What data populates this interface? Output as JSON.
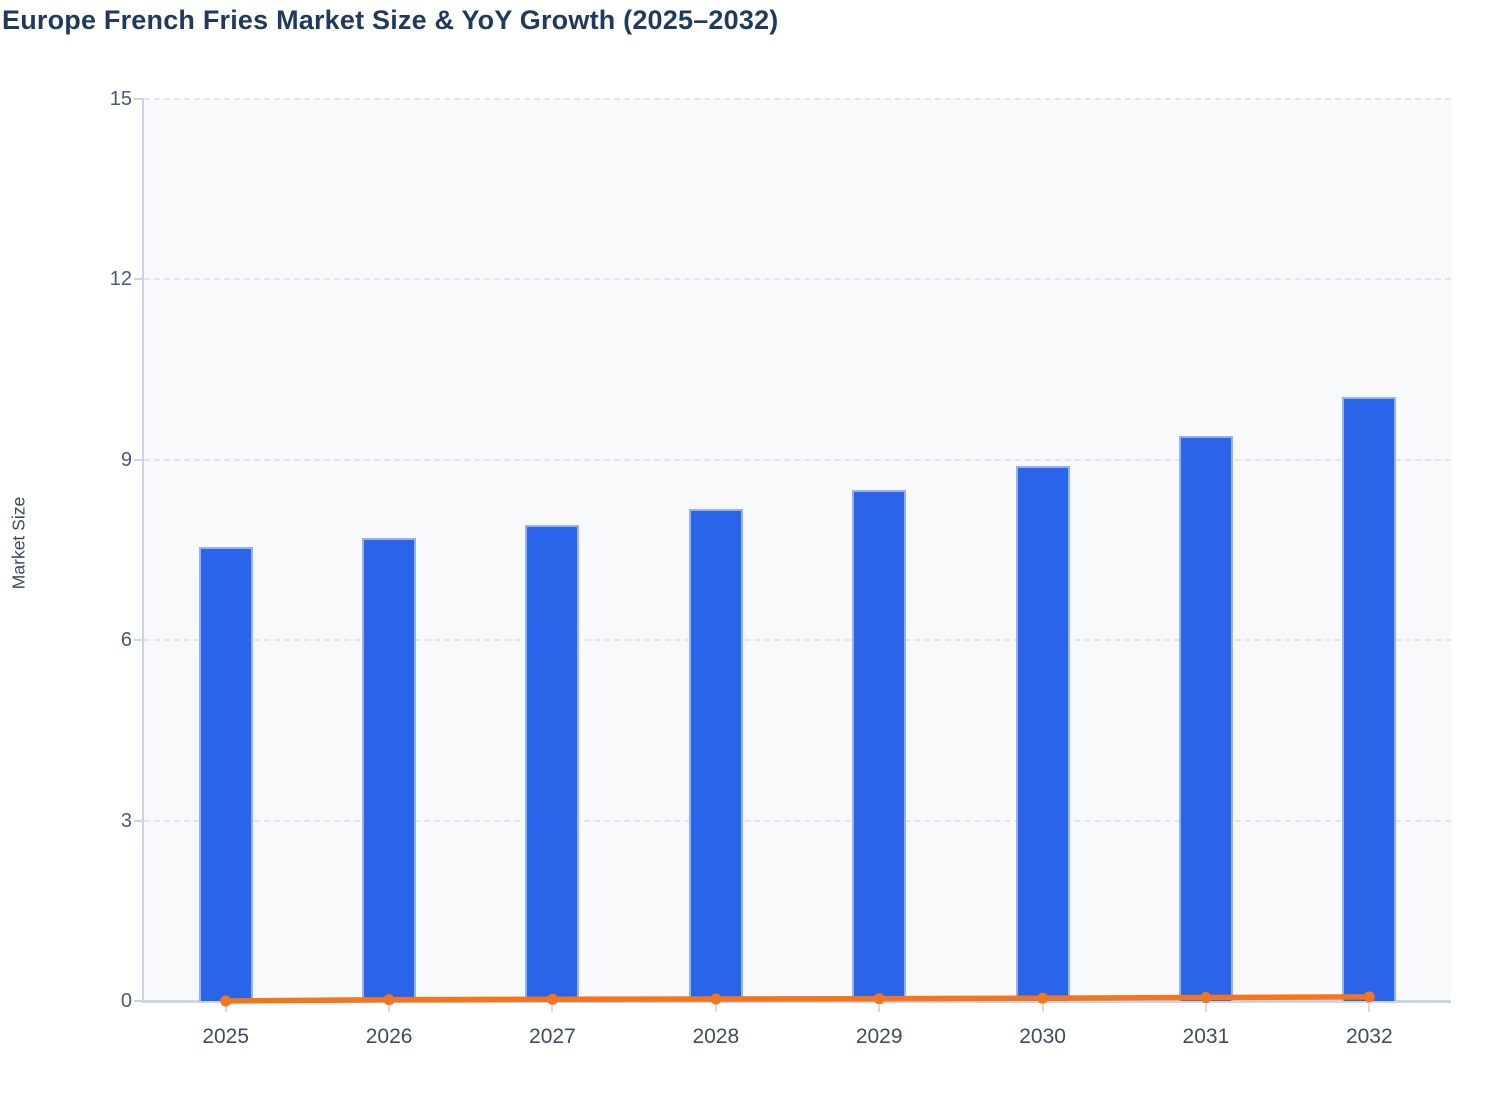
{
  "title": "Europe French Fries Market Size & YoY Growth (2025–2032)",
  "y_axis": {
    "name": "Market Size",
    "tick_labels": [
      "0",
      "3",
      "6",
      "9",
      "12",
      "15"
    ],
    "min": 0,
    "max": 15
  },
  "x_axis": {
    "tick_labels": [
      "2025",
      "2026",
      "2027",
      "2028",
      "2029",
      "2030",
      "2031",
      "2032"
    ]
  },
  "colors": {
    "bar_fill": "#2A64E8",
    "bar_edge": "#B9CBF3",
    "line": "#F4751C",
    "marker": "#F4751C",
    "grid": "#E3E5EA",
    "axis": "#CBD4EA",
    "plot_background": "#F8F9FB",
    "title_text": "#1F3A5E",
    "tick_text": "#4D5A6C"
  },
  "chart_data": {
    "type": "bar",
    "title": "Europe French Fries Market Size & YoY Growth (2025–2032)",
    "categories": [
      "2025",
      "2026",
      "2027",
      "2028",
      "2029",
      "2030",
      "2031",
      "2032"
    ],
    "series": [
      {
        "name": "Market Size",
        "type": "bar",
        "color": "#2A64E8",
        "values": [
          7.55,
          7.7,
          7.92,
          8.18,
          8.5,
          8.9,
          9.4,
          10.05
        ]
      },
      {
        "name": "YoY Growth",
        "type": "line",
        "color": "#F4751C",
        "values": [
          0,
          0.022,
          0.028,
          0.033,
          0.039,
          0.047,
          0.059,
          0.068
        ]
      }
    ],
    "xlabel": "",
    "ylabel": "Market Size",
    "ylim": [
      0,
      15
    ],
    "y_ticks": [
      0,
      3,
      6,
      9,
      12,
      15
    ],
    "grid": "horizontal-dashed",
    "legend_position": "none"
  }
}
